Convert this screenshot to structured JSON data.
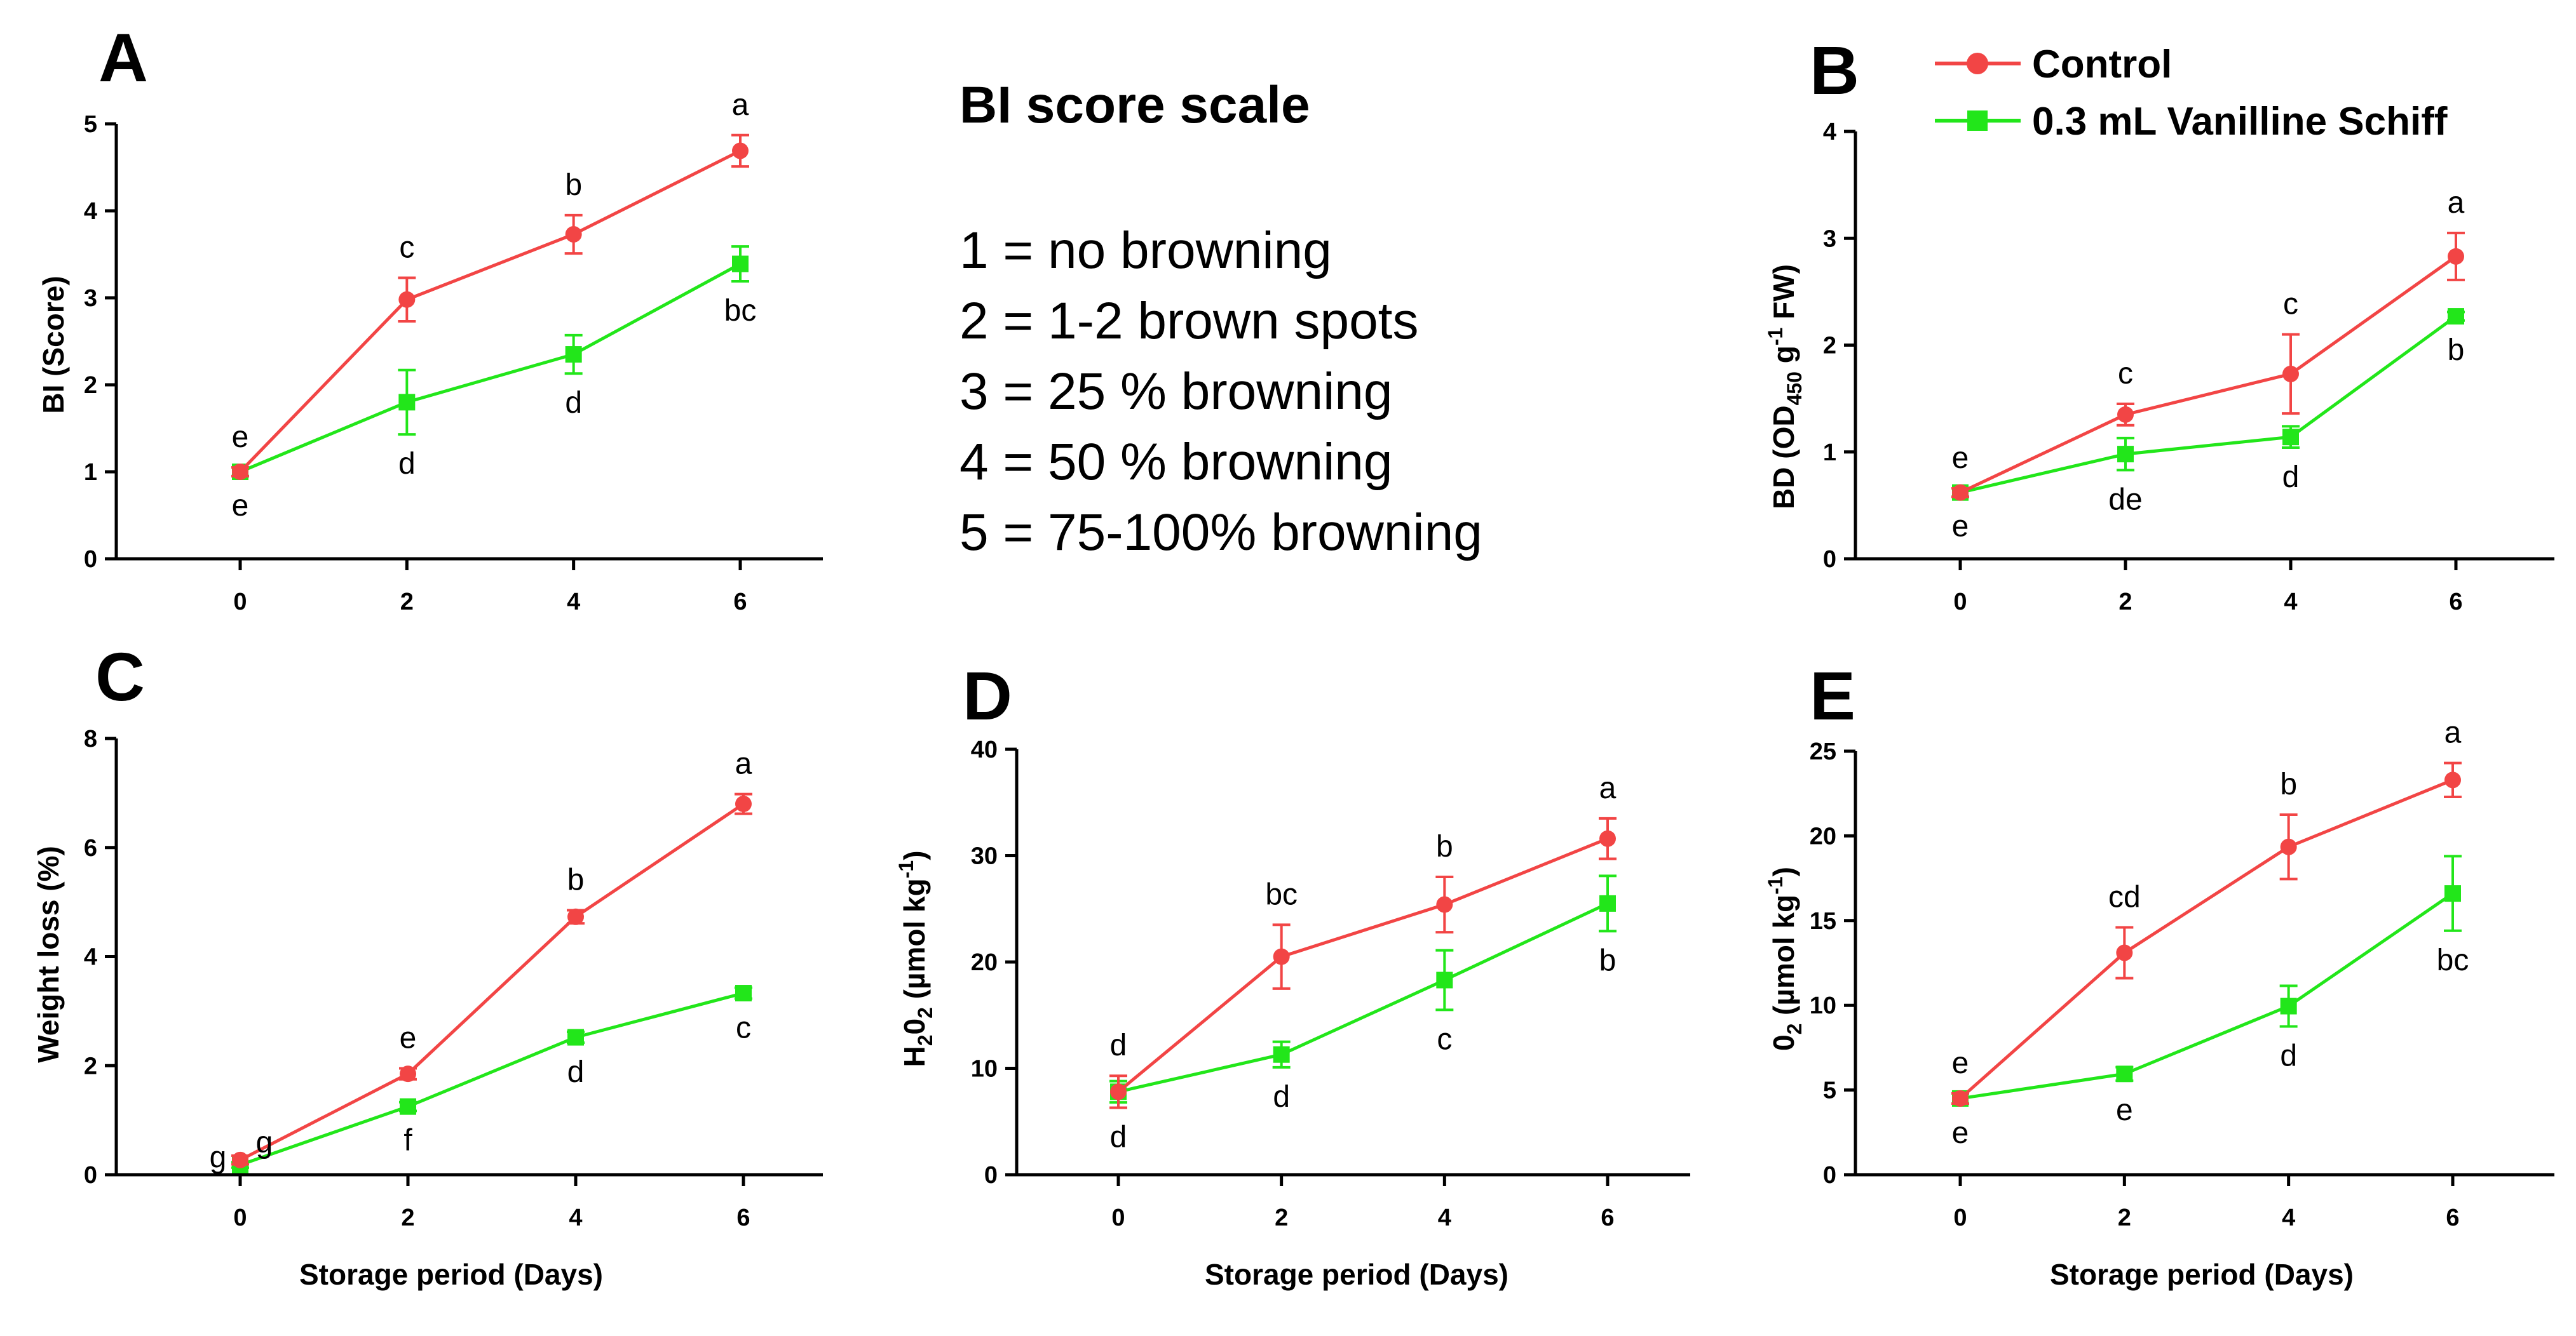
{
  "colors": {
    "control": "#f24545",
    "treatment": "#22e61a",
    "axis": "#000000"
  },
  "legend": {
    "control_label": "Control",
    "treatment_label": "0.3 mL Vanilline Schiff"
  },
  "bi_scale": {
    "title": "BI score scale",
    "items": [
      "1 = no browning",
      "2 = 1-2 brown spots",
      "3 = 25 % browning",
      "4 = 50 % browning",
      "5 = 75-100% browning"
    ]
  },
  "chart_data": [
    {
      "panel": "A",
      "type": "line",
      "x": [
        0,
        2,
        4,
        6
      ],
      "xlabel": "",
      "ylabel": "BI (Score)",
      "ylim": [
        0,
        5
      ],
      "yticks": [
        0,
        1,
        2,
        3,
        4,
        5
      ],
      "series": [
        {
          "name": "Control",
          "values": [
            1.0,
            2.98,
            3.73,
            4.69
          ],
          "errors": [
            0.05,
            0.25,
            0.22,
            0.18
          ],
          "letters": [
            "e",
            "c",
            "b",
            "a"
          ]
        },
        {
          "name": "0.3 mL Vanilline Schiff",
          "values": [
            1.0,
            1.8,
            2.35,
            3.39
          ],
          "errors": [
            0.05,
            0.37,
            0.22,
            0.2
          ],
          "letters": [
            "e",
            "d",
            "d",
            "bc"
          ]
        }
      ]
    },
    {
      "panel": "B",
      "type": "line",
      "x": [
        0,
        2,
        4,
        6
      ],
      "xlabel": "",
      "ylabel": "BD (OD450 g-1 FW)",
      "ylabel_parts": {
        "pre": "BD (OD",
        "sub": "450",
        "mid": " g",
        "sup": "-1",
        "post": " FW)"
      },
      "ylim": [
        0,
        4
      ],
      "yticks": [
        0,
        1,
        2,
        3,
        4
      ],
      "series": [
        {
          "name": "Control",
          "values": [
            0.62,
            1.35,
            1.73,
            2.83
          ],
          "errors": [
            0.04,
            0.1,
            0.37,
            0.22
          ],
          "letters": [
            "e",
            "c",
            "c",
            "a"
          ]
        },
        {
          "name": "0.3 mL Vanilline Schiff",
          "values": [
            0.62,
            0.98,
            1.14,
            2.27
          ],
          "errors": [
            0.04,
            0.15,
            0.1,
            0.04
          ],
          "letters": [
            "e",
            "de",
            "d",
            "b"
          ]
        }
      ]
    },
    {
      "panel": "C",
      "type": "line",
      "x": [
        0,
        2,
        4,
        6
      ],
      "xlabel": "Storage period (Days)",
      "ylabel": "Weight loss (%)",
      "ylim": [
        0,
        8
      ],
      "yticks": [
        0,
        2,
        4,
        6,
        8
      ],
      "series": [
        {
          "name": "Control",
          "values": [
            0.27,
            1.85,
            4.73,
            6.8
          ],
          "errors": [
            0.08,
            0.1,
            0.12,
            0.18
          ],
          "letters": [
            "g",
            "e",
            "b",
            "a"
          ]
        },
        {
          "name": "0.3 mL Vanilline Schiff",
          "values": [
            0.18,
            1.25,
            2.52,
            3.33
          ],
          "errors": [
            0.05,
            0.08,
            0.1,
            0.1
          ],
          "letters": [
            "g",
            "f",
            "d",
            "c"
          ]
        }
      ]
    },
    {
      "panel": "D",
      "type": "line",
      "x": [
        0,
        2,
        4,
        6
      ],
      "xlabel": "Storage period (Days)",
      "ylabel": "H202 (µmol kg-1)",
      "ylabel_parts": {
        "pre": "H",
        "sub": "2",
        "mid": "0",
        "sub2": "2",
        "post": " (µmol kg",
        "sup": "-1",
        "end": ")"
      },
      "ylim": [
        0,
        40
      ],
      "yticks": [
        0,
        10,
        20,
        30,
        40
      ],
      "series": [
        {
          "name": "Control",
          "values": [
            7.8,
            20.5,
            25.4,
            31.6
          ],
          "errors": [
            1.5,
            3.0,
            2.6,
            1.9
          ],
          "letters": [
            "d",
            "bc",
            "b",
            "a"
          ]
        },
        {
          "name": "0.3 mL Vanilline Schiff",
          "values": [
            7.8,
            11.3,
            18.3,
            25.5
          ],
          "errors": [
            1.0,
            1.2,
            2.8,
            2.6
          ],
          "letters": [
            "d",
            "d",
            "c",
            "b"
          ]
        }
      ]
    },
    {
      "panel": "E",
      "type": "line",
      "x": [
        0,
        2,
        4,
        6
      ],
      "xlabel": "Storage period (Days)",
      "ylabel": "02 (µmol kg-1)",
      "ylabel_parts": {
        "pre": "0",
        "sub": "2",
        "post": " (µmol kg",
        "sup": "-1",
        "end": ")"
      },
      "ylim": [
        0,
        25
      ],
      "yticks": [
        0,
        5,
        10,
        15,
        20,
        25
      ],
      "series": [
        {
          "name": "Control",
          "values": [
            4.5,
            13.1,
            19.35,
            23.3
          ],
          "errors": [
            0.3,
            1.5,
            1.9,
            1.0
          ],
          "letters": [
            "e",
            "cd",
            "b",
            "a"
          ]
        },
        {
          "name": "0.3 mL Vanilline Schiff",
          "values": [
            4.5,
            5.95,
            9.95,
            16.6
          ],
          "errors": [
            0.3,
            0.4,
            1.2,
            2.2
          ],
          "letters": [
            "e",
            "e",
            "d",
            "bc"
          ]
        }
      ]
    }
  ]
}
